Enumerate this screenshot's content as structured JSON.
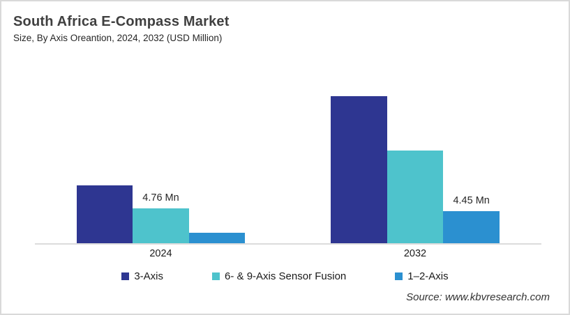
{
  "header": {
    "title": "South Africa E-Compass Market",
    "subtitle": "Size, By Axis Oreantion, 2024, 2032 (USD Million)"
  },
  "chart_data": {
    "type": "bar",
    "title": "South Africa E-Compass Market",
    "subtitle": "Size, By Axis Oreantion, 2024, 2032 (USD Million)",
    "unit": "USD Million",
    "categories": [
      "2024",
      "2032"
    ],
    "series": [
      {
        "name": "3-Axis",
        "color": "#2E3691",
        "values": [
          8.0,
          20.3
        ],
        "value_labels": [
          "",
          ""
        ]
      },
      {
        "name": "6- & 9-Axis Sensor Fusion",
        "color": "#4EC3CC",
        "values": [
          4.76,
          12.8
        ],
        "value_labels": [
          "4.76 Mn",
          ""
        ]
      },
      {
        "name": "1–2-Axis",
        "color": "#2B90D0",
        "values": [
          1.45,
          4.45
        ],
        "value_labels": [
          "",
          "4.45 Mn"
        ]
      }
    ],
    "xlabel": "",
    "ylabel": "",
    "ylim": [
      0,
      22
    ],
    "grid": false,
    "legend_position": "bottom"
  },
  "footer": {
    "source": "Source: www.kbvresearch.com"
  },
  "colors": {
    "axis_line": "#DCDCDC",
    "border": "#D9D9D9",
    "title_text": "#404040",
    "body_text": "#262626"
  }
}
